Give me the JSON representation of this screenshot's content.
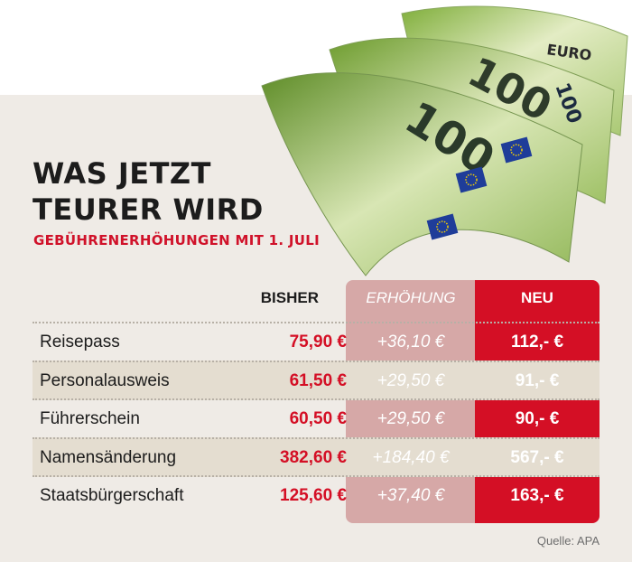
{
  "title_lines": [
    "WAS JETZT",
    "TEURER WIRD"
  ],
  "subtitle": "GEBÜHRENERHÖHUNGEN MIT 1. JULI",
  "source": "Quelle: APA",
  "colors": {
    "accent": "#d40f25",
    "erhoehung_column": "#d6a8a7",
    "panel": "#efebe6",
    "row_shade": "#e4ddd0"
  },
  "bills_image": {
    "icon": "euro-banknotes-icon",
    "denomination": "100",
    "currency": "EURO"
  },
  "chart_data": {
    "type": "table",
    "columns": [
      "BISHER",
      "ERHÖHUNG",
      "NEU"
    ],
    "rows": [
      {
        "name": "Reisepass",
        "bisher": "75,90 €",
        "erhoehung": "+36,10 €",
        "neu": "112,- €"
      },
      {
        "name": "Personalausweis",
        "bisher": "61,50 €",
        "erhoehung": "+29,50 €",
        "neu": "91,- €"
      },
      {
        "name": "Führerschein",
        "bisher": "60,50 €",
        "erhoehung": "+29,50 €",
        "neu": "90,- €"
      },
      {
        "name": "Namensänderung",
        "bisher": "382,60 €",
        "erhoehung": "+184,40 €",
        "neu": "567,- €"
      },
      {
        "name": "Staatsbürgerschaft",
        "bisher": "125,60 €",
        "erhoehung": "+37,40 €",
        "neu": "163,- €"
      }
    ]
  }
}
